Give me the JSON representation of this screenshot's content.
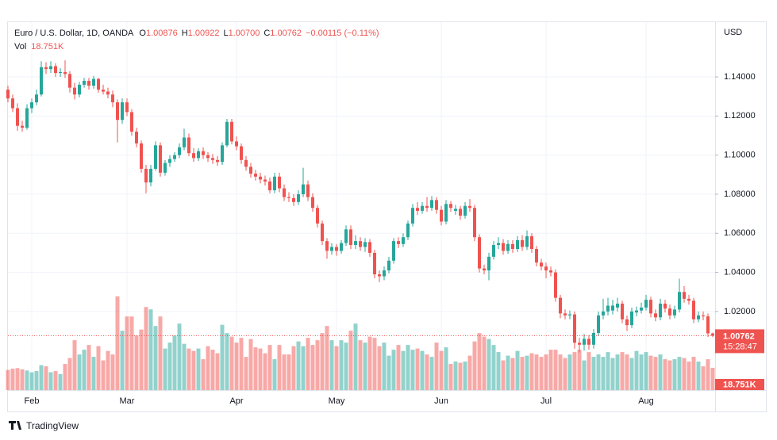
{
  "chart_data": {
    "type": "candlestick",
    "title": "Euro / U.S. Dollar, 1D, OANDA",
    "ohlc_legend": [
      {
        "key": "O",
        "value": "1.00876"
      },
      {
        "key": "H",
        "value": "1.00922"
      },
      {
        "key": "L",
        "value": "1.00700"
      },
      {
        "key": "C",
        "value": "1.00762"
      }
    ],
    "change": "−0.00115 (−0.11%)",
    "vol_legend": {
      "key": "Vol",
      "value": "18.751K"
    },
    "currency": "USD",
    "last_price_label": "1.00762",
    "countdown": "15:28:47",
    "brand": "TradingView",
    "up_color": "#26a69a",
    "down_color": "#ef5350",
    "up_volume_color": "rgba(38,166,154,0.5)",
    "down_volume_color": "rgba(239,83,80,0.5)",
    "grid": true,
    "ylim": [
      0.9798,
      1.168
    ],
    "yticks": [
      {
        "value": 1.02,
        "label": "1.02000"
      },
      {
        "value": 1.04,
        "label": "1.04000"
      },
      {
        "value": 1.06,
        "label": "1.06000"
      },
      {
        "value": 1.08,
        "label": "1.08000"
      },
      {
        "value": 1.1,
        "label": "1.10000"
      },
      {
        "value": 1.12,
        "label": "1.12000"
      },
      {
        "value": 1.14,
        "label": "1.14000"
      }
    ],
    "volume_lim": [
      0,
      310000
    ],
    "categories": [
      null,
      null,
      null,
      null,
      null,
      "Feb",
      null,
      null,
      null,
      null,
      null,
      null,
      null,
      null,
      null,
      null,
      null,
      null,
      null,
      null,
      null,
      null,
      null,
      null,
      null,
      "Mar",
      null,
      null,
      null,
      null,
      null,
      null,
      null,
      null,
      null,
      null,
      null,
      null,
      null,
      null,
      null,
      null,
      null,
      null,
      null,
      null,
      null,
      null,
      "Apr",
      null,
      null,
      null,
      null,
      null,
      null,
      null,
      null,
      null,
      null,
      null,
      null,
      null,
      null,
      null,
      null,
      null,
      null,
      null,
      null,
      "May",
      null,
      null,
      null,
      null,
      null,
      null,
      null,
      null,
      null,
      null,
      null,
      null,
      null,
      null,
      null,
      null,
      null,
      null,
      null,
      null,
      null,
      "Jun",
      null,
      null,
      null,
      null,
      null,
      null,
      null,
      null,
      null,
      null,
      null,
      null,
      null,
      null,
      null,
      null,
      null,
      null,
      null,
      null,
      null,
      "Jul",
      null,
      null,
      null,
      null,
      null,
      null,
      null,
      null,
      null,
      null,
      null,
      null,
      null,
      null,
      null,
      null,
      null,
      null,
      null,
      null,
      "Aug",
      null,
      null,
      null,
      null,
      null,
      null,
      null,
      null,
      null,
      null,
      null,
      null,
      null,
      null
    ],
    "open": [
      1.1335,
      1.129,
      1.124,
      1.115,
      1.114,
      1.124,
      1.127,
      1.131,
      1.145,
      1.144,
      1.1455,
      1.142,
      1.1425,
      1.1415,
      1.1345,
      1.131,
      1.136,
      1.138,
      1.1355,
      1.139,
      1.1335,
      1.1325,
      1.131,
      1.127,
      1.118,
      1.127,
      1.122,
      1.112,
      1.106,
      1.093,
      1.086,
      1.093,
      1.105,
      1.091,
      1.096,
      1.098,
      1.1,
      1.104,
      1.109,
      1.101,
      1.0985,
      1.102,
      1.1,
      1.0985,
      1.0975,
      1.0965,
      1.105,
      1.117,
      1.107,
      1.1045,
      1.0975,
      1.094,
      1.0905,
      1.089,
      1.0875,
      1.0865,
      1.082,
      1.089,
      1.083,
      1.0785,
      1.078,
      1.076,
      1.08,
      1.085,
      1.0785,
      1.073,
      1.065,
      1.056,
      1.051,
      1.053,
      1.051,
      1.055,
      1.062,
      1.054,
      1.056,
      1.053,
      1.0555,
      1.05,
      1.039,
      1.038,
      1.041,
      1.046,
      1.056,
      1.0545,
      1.058,
      1.065,
      1.073,
      1.0715,
      1.074,
      1.073,
      1.077,
      1.072,
      1.066,
      1.075,
      1.0715,
      1.0725,
      1.069,
      1.074,
      1.073,
      1.058,
      1.042,
      1.041,
      1.048,
      1.054,
      1.055,
      1.051,
      1.0545,
      1.052,
      1.0565,
      1.053,
      1.0585,
      1.052,
      1.045,
      1.043,
      1.041,
      1.04,
      1.027,
      1.019,
      1.018,
      1.0185,
      1.004,
      1.003,
      1.006,
      1.003,
      1.009,
      1.018,
      1.02,
      1.0205,
      1.022,
      1.024,
      1.016,
      1.013,
      1.0195,
      1.0205,
      1.022,
      1.026,
      1.019,
      1.017,
      1.024,
      1.0215,
      1.018,
      1.021,
      1.03,
      1.0265,
      1.0255,
      1.016,
      1.018,
      1.0175,
      1.00876
    ],
    "high": [
      1.1355,
      1.131,
      1.1265,
      1.1175,
      1.126,
      1.129,
      1.1335,
      1.148,
      1.1475,
      1.148,
      1.147,
      1.1445,
      1.1485,
      1.143,
      1.137,
      1.1375,
      1.1395,
      1.1395,
      1.1405,
      1.1395,
      1.136,
      1.1345,
      1.133,
      1.1285,
      1.129,
      1.129,
      1.1235,
      1.114,
      1.1075,
      1.095,
      1.095,
      1.107,
      1.1065,
      1.0975,
      1.1,
      1.1015,
      1.106,
      1.1135,
      1.111,
      1.1035,
      1.1035,
      1.104,
      1.1015,
      1.1005,
      1.0995,
      1.1065,
      1.1185,
      1.1185,
      1.1095,
      1.106,
      1.0995,
      1.096,
      1.0925,
      1.091,
      1.0895,
      1.0885,
      1.091,
      1.091,
      1.085,
      1.081,
      1.08,
      1.082,
      1.0935,
      1.087,
      1.0805,
      1.0745,
      1.0665,
      1.0575,
      1.055,
      1.0545,
      1.0565,
      1.064,
      1.064,
      1.059,
      1.058,
      1.0575,
      1.057,
      1.0515,
      1.041,
      1.043,
      1.048,
      1.0575,
      1.058,
      1.06,
      1.0665,
      1.075,
      1.076,
      1.076,
      1.0785,
      1.079,
      1.0785,
      1.074,
      1.077,
      1.0765,
      1.0745,
      1.074,
      1.076,
      1.0775,
      1.0745,
      1.0595,
      1.044,
      1.05,
      1.056,
      1.058,
      1.057,
      1.0565,
      1.0565,
      1.0585,
      1.059,
      1.0615,
      1.06,
      1.0535,
      1.047,
      1.045,
      1.043,
      1.0415,
      1.0285,
      1.021,
      1.0205,
      1.02,
      1.0065,
      1.0085,
      1.008,
      1.011,
      1.02,
      1.0265,
      1.027,
      1.026,
      1.027,
      1.0255,
      1.018,
      1.022,
      1.0225,
      1.0245,
      1.0285,
      1.0275,
      1.021,
      1.0265,
      1.026,
      1.0235,
      1.023,
      1.0368,
      1.033,
      1.0285,
      1.027,
      1.02,
      1.02,
      1.019,
      1.00922
    ],
    "low": [
      1.127,
      1.122,
      1.1125,
      1.112,
      1.113,
      1.1215,
      1.1255,
      1.13,
      1.1415,
      1.142,
      1.14,
      1.14,
      1.1395,
      1.132,
      1.1285,
      1.1295,
      1.1345,
      1.1335,
      1.134,
      1.132,
      1.131,
      1.129,
      1.1245,
      1.1065,
      1.116,
      1.12,
      1.11,
      1.104,
      1.091,
      1.0805,
      1.084,
      1.092,
      1.089,
      1.0895,
      1.094,
      1.0965,
      1.0985,
      1.1025,
      1.0995,
      1.0965,
      1.097,
      1.098,
      1.0965,
      1.0955,
      1.0945,
      1.095,
      1.104,
      1.1055,
      1.1025,
      1.0955,
      1.092,
      1.0885,
      1.087,
      1.0855,
      1.0845,
      1.0805,
      1.0805,
      1.081,
      1.0765,
      1.076,
      1.074,
      1.0745,
      1.0785,
      1.0765,
      1.071,
      1.063,
      1.054,
      1.047,
      1.049,
      1.0485,
      1.0495,
      1.0535,
      1.052,
      1.052,
      1.051,
      1.0505,
      1.048,
      1.037,
      1.035,
      1.036,
      1.0395,
      1.0445,
      1.0525,
      1.053,
      1.0565,
      1.0635,
      1.0695,
      1.07,
      1.071,
      1.0715,
      1.07,
      1.064,
      1.0645,
      1.071,
      1.0695,
      1.067,
      1.0675,
      1.071,
      1.056,
      1.04,
      1.039,
      1.036,
      1.0465,
      1.052,
      1.049,
      1.0495,
      1.05,
      1.0505,
      1.051,
      1.0515,
      1.05,
      1.043,
      1.041,
      1.037,
      1.038,
      1.025,
      1.0165,
      1.016,
      1.016,
      1.001,
      0.999,
      1.0,
      1.0005,
      1.001,
      1.0075,
      1.016,
      1.018,
      1.0185,
      1.02,
      1.014,
      1.01,
      1.0115,
      1.0175,
      1.019,
      1.0205,
      1.017,
      1.015,
      1.0155,
      1.0195,
      1.016,
      1.0165,
      1.0195,
      1.0245,
      1.0235,
      1.014,
      1.0145,
      1.0155,
      1.007,
      1.007
    ],
    "close": [
      1.129,
      1.124,
      1.115,
      1.114,
      1.124,
      1.127,
      1.131,
      1.145,
      1.144,
      1.1455,
      1.142,
      1.1425,
      1.1415,
      1.1345,
      1.131,
      1.136,
      1.138,
      1.1355,
      1.139,
      1.1335,
      1.1325,
      1.131,
      1.127,
      1.118,
      1.127,
      1.122,
      1.112,
      1.106,
      1.093,
      1.086,
      1.093,
      1.105,
      1.091,
      1.096,
      1.098,
      1.1,
      1.104,
      1.109,
      1.101,
      1.0985,
      1.102,
      1.1,
      1.0985,
      1.0975,
      1.0965,
      1.105,
      1.117,
      1.107,
      1.1045,
      1.0975,
      1.094,
      1.0905,
      1.089,
      1.0875,
      1.0865,
      1.082,
      1.089,
      1.083,
      1.0785,
      1.078,
      1.076,
      1.08,
      1.085,
      1.0785,
      1.073,
      1.065,
      1.056,
      1.051,
      1.053,
      1.051,
      1.055,
      1.062,
      1.054,
      1.056,
      1.053,
      1.0555,
      1.05,
      1.039,
      1.038,
      1.041,
      1.046,
      1.056,
      1.0545,
      1.058,
      1.065,
      1.073,
      1.0715,
      1.074,
      1.073,
      1.077,
      1.072,
      1.066,
      1.075,
      1.073,
      1.0725,
      1.069,
      1.074,
      1.073,
      1.058,
      1.042,
      1.041,
      1.048,
      1.054,
      1.055,
      1.051,
      1.0545,
      1.052,
      1.0565,
      1.053,
      1.0585,
      1.052,
      1.045,
      1.043,
      1.041,
      1.04,
      1.027,
      1.019,
      1.018,
      1.0185,
      1.004,
      1.003,
      1.006,
      1.003,
      1.009,
      1.018,
      1.02,
      1.023,
      1.023,
      1.024,
      1.016,
      1.013,
      1.02,
      1.0205,
      1.022,
      1.026,
      1.019,
      1.017,
      1.024,
      1.0215,
      1.018,
      1.021,
      1.03,
      1.0265,
      1.0255,
      1.016,
      1.018,
      1.0175,
      1.0088,
      1.00762
    ],
    "volume": [
      17000,
      18000,
      18500,
      17500,
      16500,
      15000,
      16000,
      21000,
      20000,
      15000,
      16000,
      13500,
      22000,
      27000,
      42000,
      30000,
      34000,
      38000,
      28000,
      37000,
      25000,
      33000,
      30000,
      79000,
      50000,
      62000,
      62000,
      46000,
      51000,
      70000,
      68000,
      54000,
      62000,
      35000,
      40000,
      46000,
      56000,
      39000,
      35000,
      33000,
      35000,
      26000,
      37000,
      34000,
      31000,
      55000,
      48000,
      45000,
      40000,
      44000,
      28000,
      43000,
      36000,
      35000,
      31000,
      38000,
      26000,
      38000,
      30000,
      30000,
      37000,
      41000,
      37000,
      44000,
      38000,
      42000,
      48000,
      54000,
      42000,
      37000,
      42000,
      40000,
      50000,
      56000,
      42000,
      40000,
      45000,
      44000,
      37000,
      40000,
      29000,
      34000,
      38000,
      33000,
      38000,
      34000,
      35000,
      33000,
      30000,
      28000,
      40000,
      33000,
      36000,
      22000,
      24000,
      23000,
      24000,
      29000,
      41000,
      48000,
      45000,
      43000,
      38000,
      32000,
      25000,
      29000,
      27000,
      33000,
      28000,
      29000,
      31000,
      30000,
      28000,
      30000,
      34000,
      34000,
      30000,
      27000,
      30000,
      32000,
      34000,
      25000,
      32000,
      28000,
      30000,
      28000,
      32000,
      27000,
      30000,
      32000,
      30000,
      27000,
      33000,
      30000,
      32000,
      29000,
      28000,
      30000,
      26000,
      25000,
      26000,
      28000,
      27000,
      24000,
      28000,
      24000,
      20000,
      26000,
      18751
    ]
  }
}
